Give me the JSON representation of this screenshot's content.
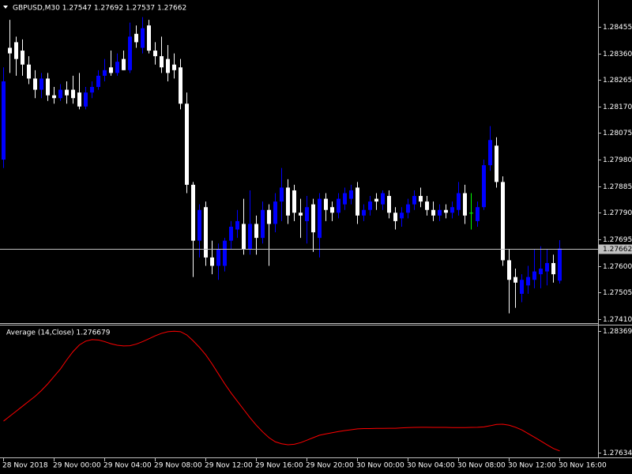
{
  "chart_data": [
    {
      "type": "candlestick",
      "title": "GBPUSD,M30  1.27547 1.27692 1.27537 1.27662",
      "categories": [
        "28 Nov 2018",
        null,
        null,
        null,
        null,
        null,
        null,
        null,
        "29 Nov 00:00",
        null,
        null,
        null,
        null,
        null,
        null,
        null,
        "29 Nov 04:00",
        null,
        null,
        null,
        null,
        null,
        null,
        null,
        "29 Nov 08:00",
        null,
        null,
        null,
        null,
        null,
        null,
        null,
        "29 Nov 12:00",
        null,
        null,
        null,
        null,
        null,
        null,
        null,
        "29 Nov 16:00",
        null,
        null,
        null,
        null,
        null,
        null,
        null,
        "29 Nov 20:00",
        null,
        null,
        null,
        null,
        null,
        null,
        null,
        "30 Nov 00:00",
        null,
        null,
        null,
        null,
        null,
        null,
        null,
        "30 Nov 04:00",
        null,
        null,
        null,
        null,
        null,
        null,
        null,
        "30 Nov 08:00",
        null,
        null,
        null,
        null,
        null,
        null,
        null,
        "30 Nov 12:00",
        null,
        null,
        null,
        null,
        null,
        null,
        null,
        "30 Nov 16:00"
      ],
      "open": [
        1.2798,
        1.2838,
        1.284,
        1.2837,
        1.2832,
        1.2827,
        1.2823,
        1.2827,
        1.2821,
        1.282,
        1.2823,
        1.2823,
        1.2822,
        1.2817,
        1.2822,
        1.2824,
        1.2828,
        1.2831,
        1.2829,
        1.2834,
        1.283,
        1.2843,
        1.2838,
        1.2846,
        1.2837,
        1.2835,
        1.2834,
        1.2832,
        1.2831,
        1.2818,
        1.2789,
        1.2769,
        1.2781,
        1.2763,
        1.276,
        1.276,
        1.2769,
        1.2773,
        1.2775,
        1.2766,
        1.2775,
        1.277,
        1.278,
        1.2775,
        1.2783,
        1.2788,
        1.2787,
        1.2779,
        1.2776,
        1.2782,
        1.277,
        1.2784,
        1.2781,
        1.2779,
        1.2782,
        1.2784,
        1.2788,
        1.2778,
        1.278,
        1.2784,
        1.2782,
        1.2785,
        1.2779,
        1.2777,
        1.2779,
        1.2782,
        1.2785,
        1.2783,
        1.278,
        1.2778,
        1.278,
        1.2779,
        1.278,
        1.2786,
        1.2779,
        1.2776,
        1.2781,
        1.2796,
        1.2803,
        1.279,
        1.2762,
        1.2756,
        1.275,
        1.2753,
        1.2755,
        1.2757,
        1.2758,
        1.2761,
        1.27547
      ],
      "high": [
        1.2831,
        1.2848,
        1.2842,
        1.2841,
        1.2835,
        1.283,
        1.2829,
        1.2829,
        1.2824,
        1.2825,
        1.2826,
        1.2828,
        1.2829,
        1.2824,
        1.2826,
        1.283,
        1.2834,
        1.2837,
        1.2836,
        1.2837,
        1.2847,
        1.2846,
        1.2849,
        1.2848,
        1.284,
        1.2842,
        1.2839,
        1.2836,
        1.2834,
        1.2822,
        1.279,
        1.2782,
        1.2783,
        1.2769,
        1.2768,
        1.277,
        1.2776,
        1.278,
        1.2784,
        1.2787,
        1.2778,
        1.2783,
        1.2782,
        1.2786,
        1.2795,
        1.2791,
        1.2789,
        1.2784,
        1.2785,
        1.2784,
        1.2786,
        1.2786,
        1.2783,
        1.2786,
        1.2788,
        1.2789,
        1.279,
        1.2782,
        1.2785,
        1.2786,
        1.2787,
        1.2787,
        1.2781,
        1.2781,
        1.2784,
        1.2787,
        1.2788,
        1.2785,
        1.2783,
        1.2782,
        1.2782,
        1.2783,
        1.279,
        1.2789,
        1.2786,
        1.2783,
        1.2798,
        1.281,
        1.2806,
        1.2792,
        1.2766,
        1.2759,
        1.2757,
        1.276,
        1.2766,
        1.2767,
        1.2766,
        1.2764,
        1.27692
      ],
      "low": [
        1.2795,
        1.2829,
        1.2828,
        1.2828,
        1.2825,
        1.282,
        1.282,
        1.2819,
        1.2818,
        1.2819,
        1.2818,
        1.2818,
        1.2816,
        1.2816,
        1.282,
        1.2823,
        1.2826,
        1.2828,
        1.2828,
        1.283,
        1.2829,
        1.2838,
        1.2836,
        1.2836,
        1.2832,
        1.2829,
        1.2826,
        1.2827,
        1.2816,
        1.2786,
        1.2756,
        1.2763,
        1.276,
        1.2757,
        1.2755,
        1.2758,
        1.2766,
        1.277,
        1.2764,
        1.2764,
        1.2764,
        1.2768,
        1.276,
        1.2772,
        1.2776,
        1.2775,
        1.2776,
        1.277,
        1.2768,
        1.2765,
        1.2763,
        1.2776,
        1.2776,
        1.2777,
        1.278,
        1.2782,
        1.2775,
        1.2776,
        1.2778,
        1.278,
        1.278,
        1.2777,
        1.2773,
        1.2774,
        1.2777,
        1.278,
        1.2781,
        1.2778,
        1.2776,
        1.2776,
        1.2777,
        1.2777,
        1.2778,
        1.2775,
        1.2773,
        1.2774,
        1.278,
        1.2794,
        1.2788,
        1.276,
        1.2743,
        1.2745,
        1.2747,
        1.275,
        1.2752,
        1.2752,
        1.2753,
        1.2754,
        1.27537
      ],
      "close": [
        1.2826,
        1.2836,
        1.2834,
        1.2832,
        1.2827,
        1.2823,
        1.2827,
        1.2821,
        1.282,
        1.2823,
        1.2821,
        1.282,
        1.2817,
        1.2822,
        1.2824,
        1.2828,
        1.283,
        1.2829,
        1.2833,
        1.283,
        1.2842,
        1.284,
        1.2845,
        1.2837,
        1.2835,
        1.2831,
        1.2829,
        1.283,
        1.2818,
        1.2789,
        1.2769,
        1.278,
        1.2763,
        1.276,
        1.2766,
        1.2769,
        1.2774,
        1.2776,
        1.2766,
        1.2775,
        1.277,
        1.278,
        1.2775,
        1.2783,
        1.2788,
        1.2778,
        1.2779,
        1.2778,
        1.2781,
        1.2772,
        1.2784,
        1.278,
        1.2779,
        1.2784,
        1.2786,
        1.2787,
        1.2778,
        1.278,
        1.2783,
        1.2783,
        1.2786,
        1.2779,
        1.2776,
        1.2779,
        1.2782,
        1.2785,
        1.2783,
        1.278,
        1.2778,
        1.278,
        1.2779,
        1.2781,
        1.2786,
        1.2778,
        1.2779,
        1.2781,
        1.2796,
        1.2805,
        1.279,
        1.2762,
        1.2755,
        1.2754,
        1.2755,
        1.2756,
        1.2758,
        1.2759,
        1.2761,
        1.2757,
        1.27662
      ],
      "up_color": "#0000ff",
      "down_color": "#ffffff",
      "doji_color": "#00ff00",
      "ylim": [
        1.27398,
        1.28551
      ],
      "yticks": [
        1.28455,
        {
          "value": 1.2836,
          "label": "1.28360"
        },
        1.28265,
        {
          "value": 1.2817,
          "label": "1.28170"
        },
        1.28075,
        {
          "value": 1.2798,
          "label": "1.27980"
        },
        1.27885,
        {
          "value": 1.2779,
          "label": "1.27790"
        },
        1.27695,
        {
          "value": 1.276,
          "label": "1.27600"
        },
        1.27505,
        {
          "value": 1.2741,
          "label": "1.27410"
        }
      ],
      "current_price": 1.27662,
      "current_price_color": "#c0c0c0"
    },
    {
      "type": "line",
      "title": "Average (14,Close) 1.276679",
      "color": "#ff0000",
      "values": [
        1.27825,
        1.27855,
        1.27885,
        1.27915,
        1.27945,
        1.27975,
        1.2801,
        1.2805,
        1.28095,
        1.2814,
        1.28195,
        1.28245,
        1.28285,
        1.28308,
        1.28317,
        1.28315,
        1.28305,
        1.28292,
        1.28283,
        1.28279,
        1.2828,
        1.2829,
        1.28305,
        1.28322,
        1.2834,
        1.28355,
        1.28365,
        1.28368,
        1.28365,
        1.28345,
        1.2831,
        1.2827,
        1.28225,
        1.2817,
        1.2811,
        1.2805,
        1.27995,
        1.27945,
        1.27895,
        1.27845,
        1.278,
        1.2776,
        1.27725,
        1.277,
        1.27688,
        1.27682,
        1.27685,
        1.27695,
        1.2771,
        1.27725,
        1.2774,
        1.27748,
        1.27755,
        1.27762,
        1.27768,
        1.27773,
        1.27778,
        1.2778,
        1.2778,
        1.27781,
        1.27781,
        1.27782,
        1.27782,
        1.27784,
        1.27786,
        1.27787,
        1.27788,
        1.27788,
        1.27787,
        1.27787,
        1.27787,
        1.27786,
        1.27786,
        1.27786,
        1.27787,
        1.27788,
        1.2779,
        1.27797,
        1.27805,
        1.27806,
        1.278,
        1.27788,
        1.27772,
        1.2775,
        1.27728,
        1.27705,
        1.27682,
        1.2766,
        1.27645
      ],
      "ylim": [
        1.276345,
        1.28369
      ],
      "yticks": [
        1.28369,
        1.276345
      ]
    }
  ]
}
